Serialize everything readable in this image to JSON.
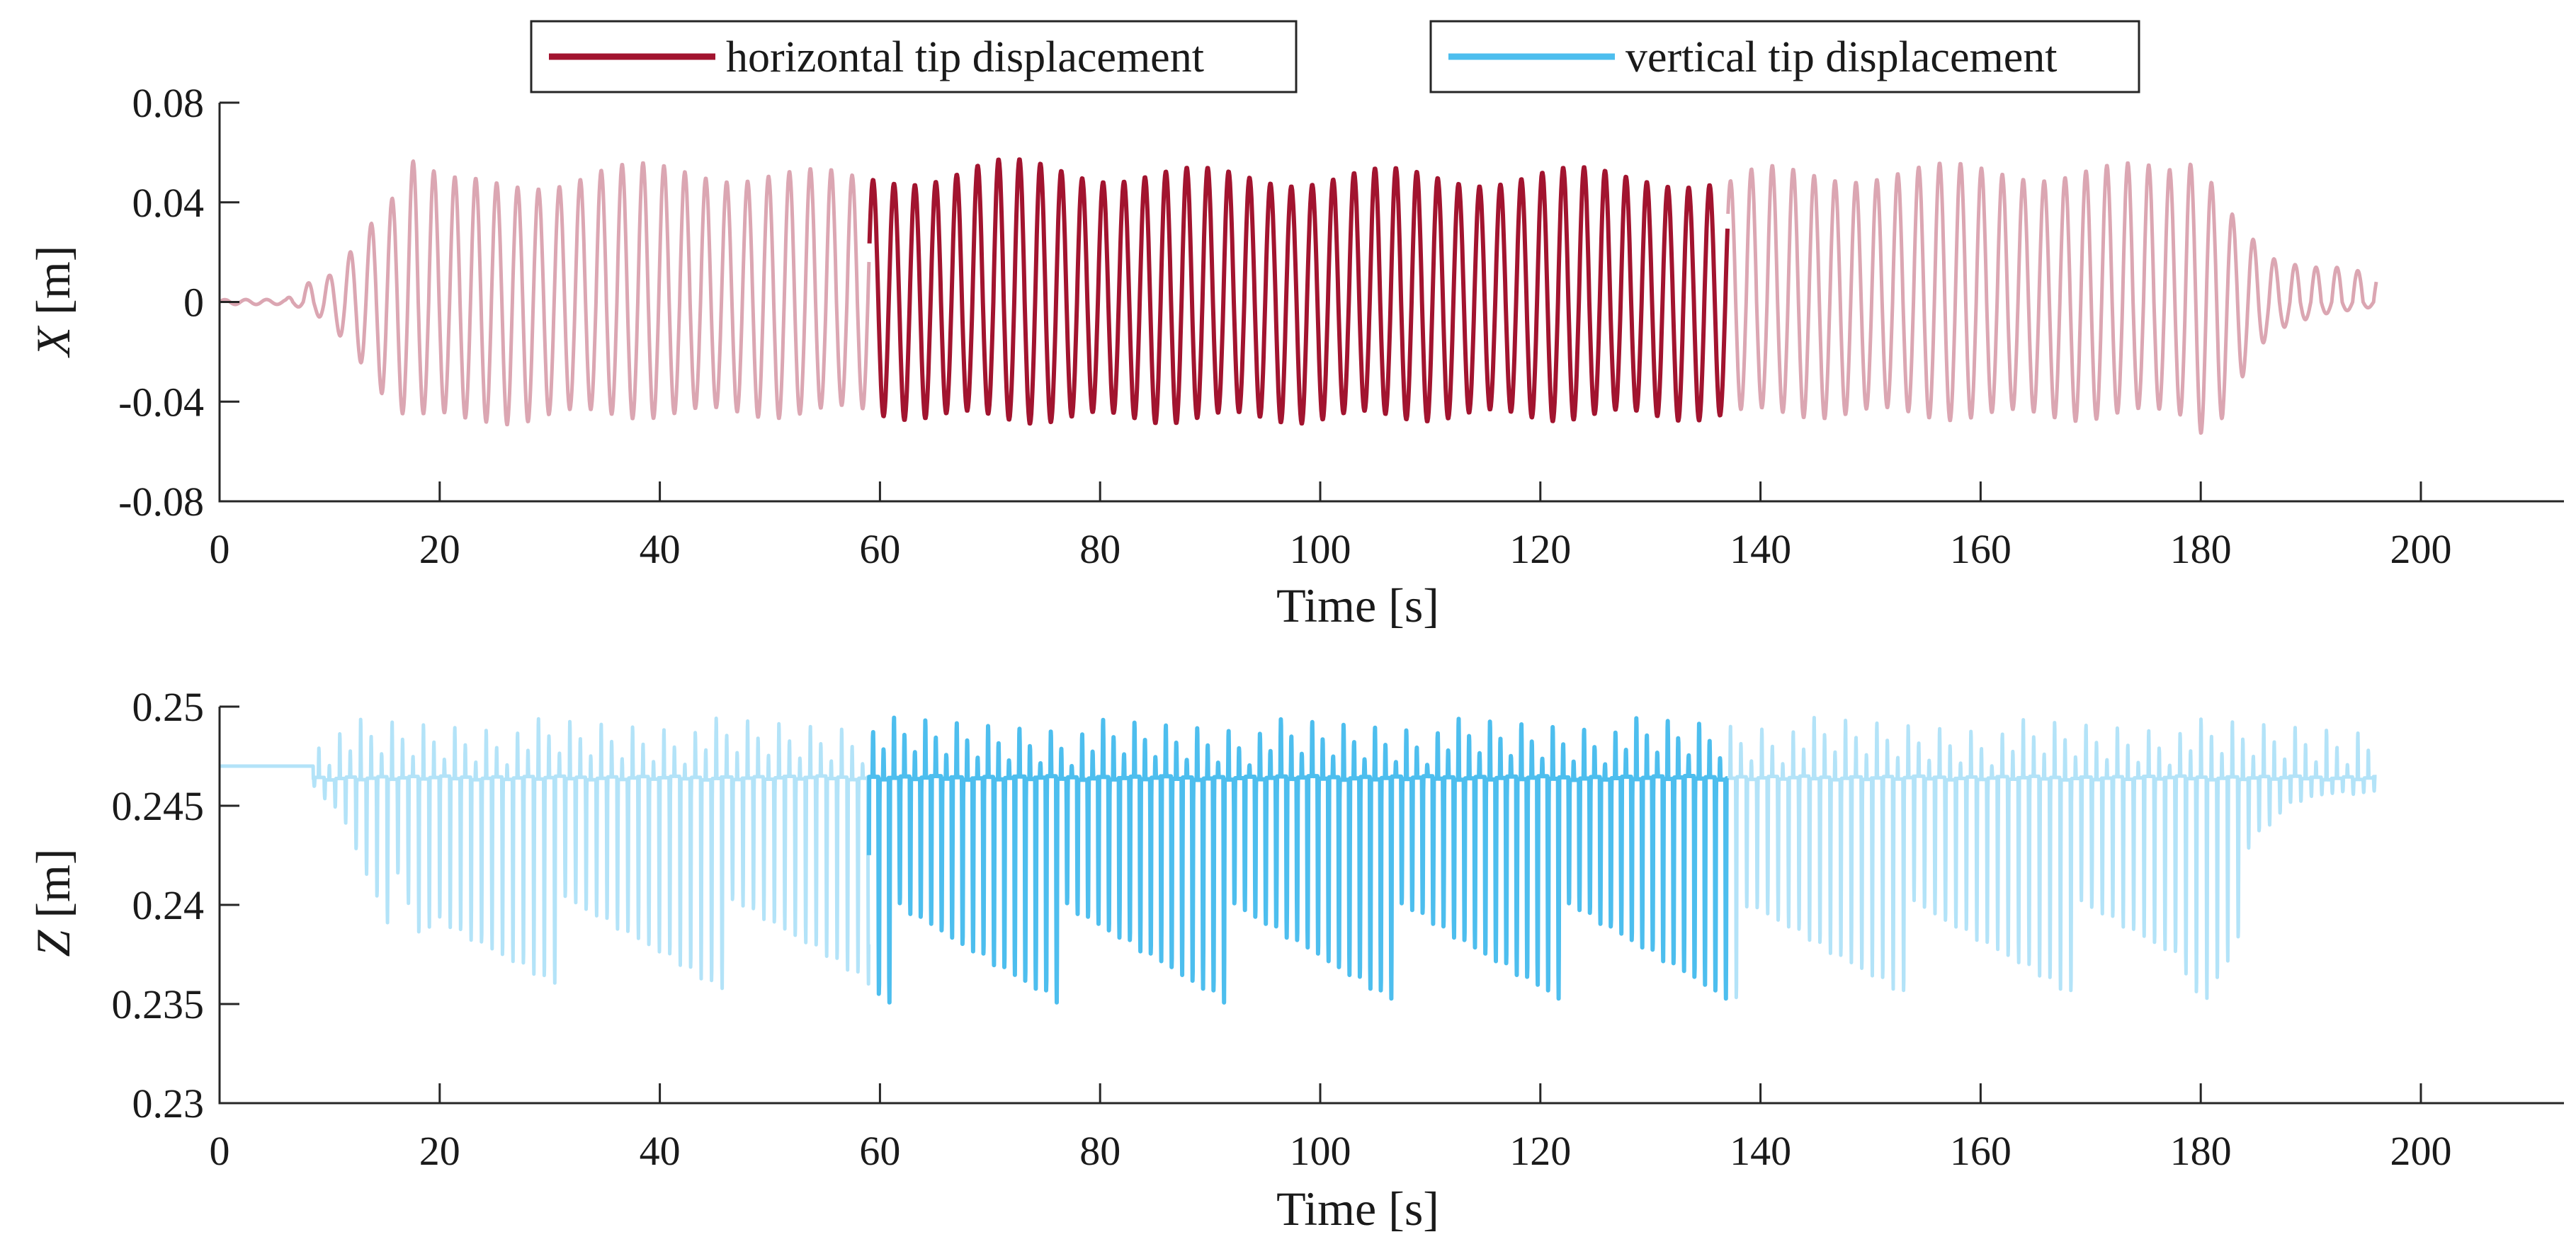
{
  "chart_data": [
    {
      "type": "line",
      "panel": "top",
      "ylabel_var": "X",
      "ylabel_unit": "[m]",
      "xlabel": "Time [s]",
      "xlim": [
        0,
        213
      ],
      "ylim": [
        -0.08,
        0.08
      ],
      "xticks": [
        0,
        20,
        40,
        60,
        80,
        100,
        120,
        140,
        160,
        180,
        200
      ],
      "xtick_labels": [
        "0",
        "20",
        "40",
        "60",
        "80",
        "100",
        "120",
        "140",
        "160",
        "180",
        "200"
      ],
      "yticks": [
        -0.08,
        -0.04,
        0,
        0.04,
        0.08
      ],
      "ytick_labels": [
        "-0.08",
        "-0.04",
        "0",
        "0.04",
        "0.08"
      ],
      "highlight_range": [
        59,
        137
      ],
      "series": [
        {
          "name": "horizontal tip displacement",
          "color": "#a2142f",
          "faded_color": "#dba6b2",
          "period": 1.9,
          "t_end": 196,
          "envelope_max": [
            [
              0,
              0.001
            ],
            [
              6,
              0.001
            ],
            [
              8,
              0.008
            ],
            [
              10,
              0.012
            ],
            [
              12,
              0.024
            ],
            [
              14,
              0.038
            ],
            [
              16,
              0.048
            ],
            [
              18,
              0.063
            ],
            [
              20,
              0.05
            ],
            [
              25,
              0.051
            ],
            [
              30,
              0.053
            ],
            [
              35,
              0.056
            ],
            [
              40,
              0.056
            ],
            [
              50,
              0.056
            ],
            [
              58,
              0.052
            ],
            [
              60,
              0.053
            ],
            [
              70,
              0.058
            ],
            [
              80,
              0.056
            ],
            [
              90,
              0.054
            ],
            [
              100,
              0.054
            ],
            [
              110,
              0.054
            ],
            [
              120,
              0.054
            ],
            [
              130,
              0.055
            ],
            [
              137,
              0.05
            ],
            [
              140,
              0.055
            ],
            [
              150,
              0.056
            ],
            [
              160,
              0.056
            ],
            [
              170,
              0.057
            ],
            [
              177,
              0.055
            ],
            [
              179,
              0.061
            ],
            [
              181,
              0.055
            ],
            [
              183,
              0.04
            ],
            [
              185,
              0.027
            ],
            [
              187,
              0.017
            ],
            [
              190,
              0.014
            ],
            [
              193,
              0.014
            ],
            [
              196,
              0.012
            ]
          ],
          "envelope_min": [
            [
              0,
              -0.001
            ],
            [
              6,
              -0.001
            ],
            [
              8,
              -0.003
            ],
            [
              10,
              -0.01
            ],
            [
              12,
              -0.02
            ],
            [
              14,
              -0.032
            ],
            [
              16,
              -0.045
            ],
            [
              18,
              -0.048
            ],
            [
              20,
              -0.049
            ],
            [
              22,
              -0.051
            ],
            [
              30,
              -0.048
            ],
            [
              40,
              -0.047
            ],
            [
              50,
              -0.047
            ],
            [
              58,
              -0.046
            ],
            [
              60,
              -0.047
            ],
            [
              70,
              -0.049
            ],
            [
              80,
              -0.049
            ],
            [
              90,
              -0.049
            ],
            [
              100,
              -0.049
            ],
            [
              110,
              -0.048
            ],
            [
              120,
              -0.048
            ],
            [
              130,
              -0.048
            ],
            [
              137,
              -0.048
            ],
            [
              140,
              -0.047
            ],
            [
              150,
              -0.047
            ],
            [
              160,
              -0.048
            ],
            [
              170,
              -0.048
            ],
            [
              178,
              -0.047
            ],
            [
              180,
              -0.053
            ],
            [
              182,
              -0.047
            ],
            [
              184,
              -0.03
            ],
            [
              186,
              -0.016
            ],
            [
              188,
              -0.01
            ],
            [
              191,
              -0.005
            ],
            [
              194,
              -0.003
            ],
            [
              196,
              -0.002
            ]
          ]
        }
      ]
    },
    {
      "type": "line",
      "panel": "bottom",
      "ylabel_var": "Z",
      "ylabel_unit": "[m]",
      "xlabel": "Time [s]",
      "xlim": [
        0,
        213
      ],
      "ylim": [
        0.23,
        0.25
      ],
      "xticks": [
        0,
        20,
        40,
        60,
        80,
        100,
        120,
        140,
        160,
        180,
        200
      ],
      "xtick_labels": [
        "0",
        "20",
        "40",
        "60",
        "80",
        "100",
        "120",
        "140",
        "160",
        "180",
        "200"
      ],
      "yticks": [
        0.23,
        0.235,
        0.24,
        0.245,
        0.25
      ],
      "ytick_labels": [
        "0.23",
        "0.235",
        "0.24",
        "0.245",
        "0.25"
      ],
      "highlight_range": [
        59,
        137
      ],
      "series": [
        {
          "name": "vertical tip displacement",
          "color": "#4dbeee",
          "faded_color": "#b3e3f8",
          "period": 0.95,
          "t_start_oscillation": 8.5,
          "t_end": 196,
          "baseline": 0.247,
          "upper_level": 0.2465,
          "lower_min": 0.234,
          "upper_max": 0.25
        }
      ]
    }
  ],
  "legend": {
    "entries": [
      {
        "label": "horizontal tip displacement",
        "color": "#a2142f"
      },
      {
        "label": "vertical tip displacement",
        "color": "#4dbeee"
      }
    ],
    "placement": "top"
  }
}
